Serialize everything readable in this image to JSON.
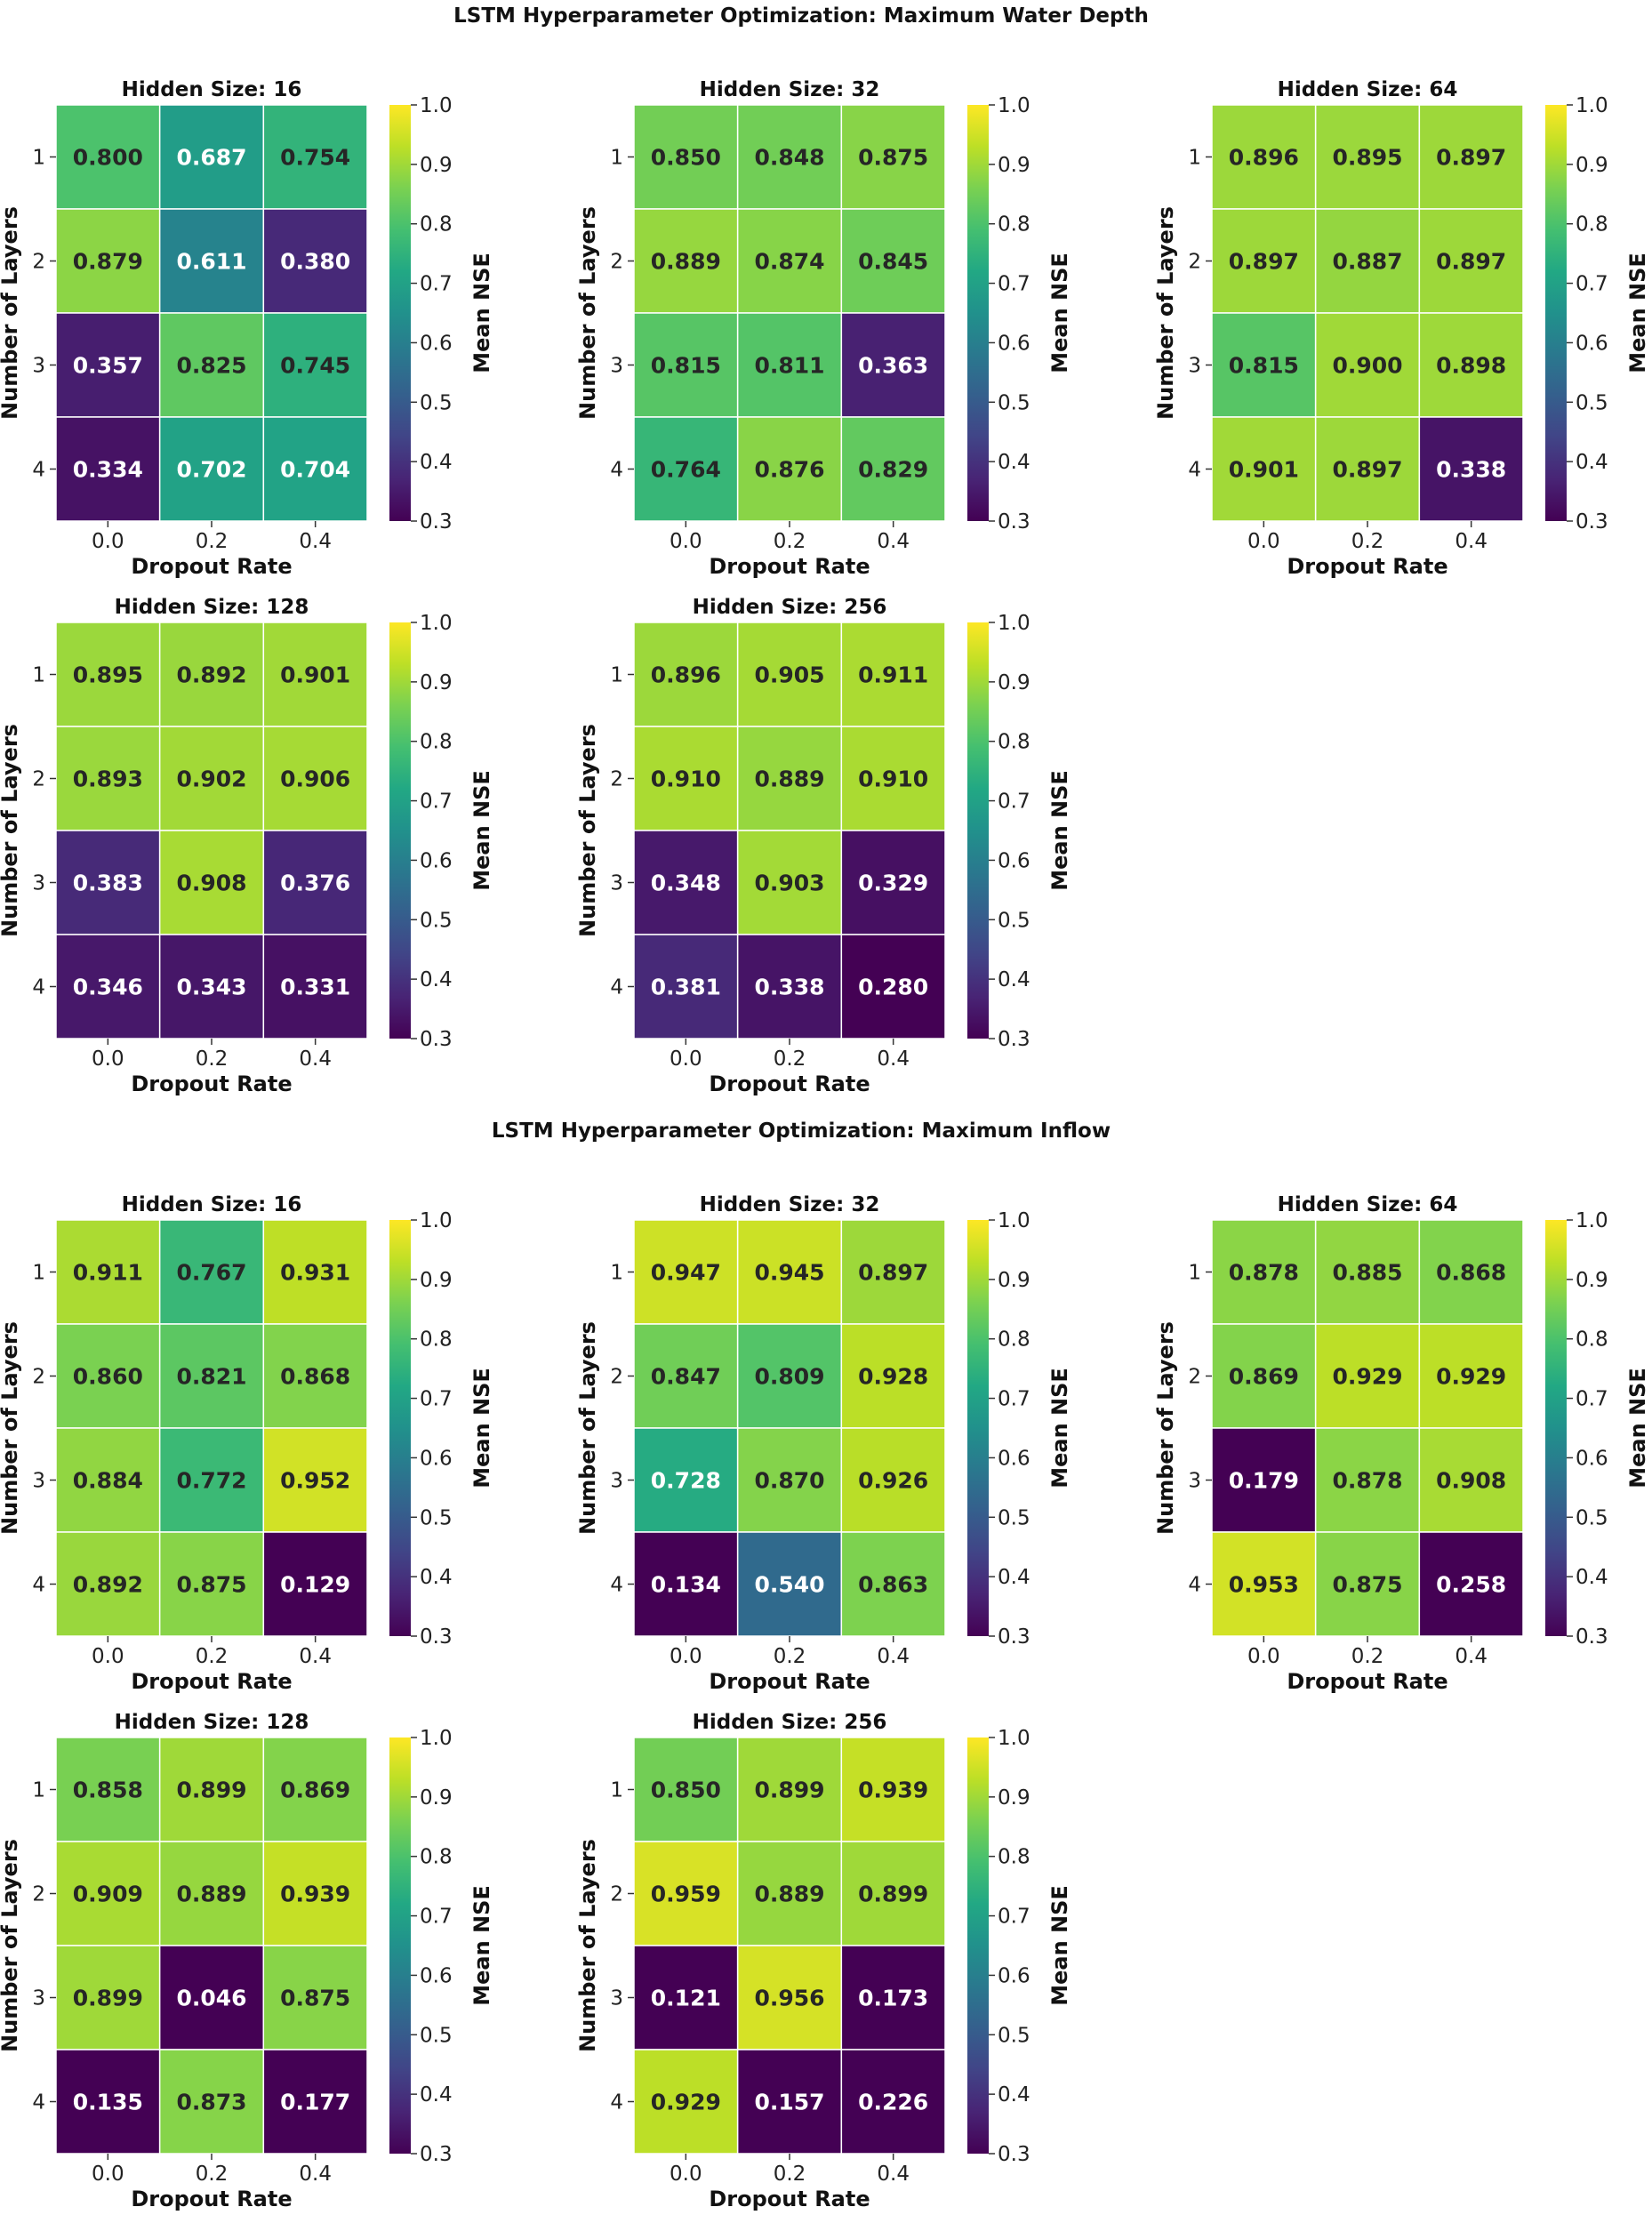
{
  "chart_data": [
    {
      "type": "heatmap",
      "title": "LSTM Hyperparameter Optimization: Maximum Water Depth",
      "xlabel": "Dropout Rate",
      "ylabel": "Number of Layers",
      "colorbar_label": "Mean NSE",
      "colorbar_range": [
        0.3,
        1.0
      ],
      "colorbar_ticks": [
        "0.3",
        "0.4",
        "0.5",
        "0.6",
        "0.7",
        "0.8",
        "0.9",
        "1.0"
      ],
      "colormap": "viridis",
      "x_categories": [
        "0.0",
        "0.2",
        "0.4"
      ],
      "y_categories": [
        "1",
        "2",
        "3",
        "4"
      ],
      "panels": [
        {
          "title": "Hidden Size: 16",
          "values": [
            [
              0.8,
              0.687,
              0.754
            ],
            [
              0.879,
              0.611,
              0.38
            ],
            [
              0.357,
              0.825,
              0.745
            ],
            [
              0.334,
              0.702,
              0.704
            ]
          ]
        },
        {
          "title": "Hidden Size: 32",
          "values": [
            [
              0.85,
              0.848,
              0.875
            ],
            [
              0.889,
              0.874,
              0.845
            ],
            [
              0.815,
              0.811,
              0.363
            ],
            [
              0.764,
              0.876,
              0.829
            ]
          ]
        },
        {
          "title": "Hidden Size: 64",
          "values": [
            [
              0.896,
              0.895,
              0.897
            ],
            [
              0.897,
              0.887,
              0.897
            ],
            [
              0.815,
              0.9,
              0.898
            ],
            [
              0.901,
              0.897,
              0.338
            ]
          ]
        },
        {
          "title": "Hidden Size: 128",
          "values": [
            [
              0.895,
              0.892,
              0.901
            ],
            [
              0.893,
              0.902,
              0.906
            ],
            [
              0.383,
              0.908,
              0.376
            ],
            [
              0.346,
              0.343,
              0.331
            ]
          ]
        },
        {
          "title": "Hidden Size: 256",
          "values": [
            [
              0.896,
              0.905,
              0.911
            ],
            [
              0.91,
              0.889,
              0.91
            ],
            [
              0.348,
              0.903,
              0.329
            ],
            [
              0.381,
              0.338,
              0.28
            ]
          ]
        }
      ]
    },
    {
      "type": "heatmap",
      "title": "LSTM Hyperparameter Optimization: Maximum Inflow",
      "xlabel": "Dropout Rate",
      "ylabel": "Number of Layers",
      "colorbar_label": "Mean NSE",
      "colorbar_range": [
        0.3,
        1.0
      ],
      "colorbar_ticks": [
        "0.3",
        "0.4",
        "0.5",
        "0.6",
        "0.7",
        "0.8",
        "0.9",
        "1.0"
      ],
      "colormap": "viridis",
      "x_categories": [
        "0.0",
        "0.2",
        "0.4"
      ],
      "y_categories": [
        "1",
        "2",
        "3",
        "4"
      ],
      "panels": [
        {
          "title": "Hidden Size: 16",
          "values": [
            [
              0.911,
              0.767,
              0.931
            ],
            [
              0.86,
              0.821,
              0.868
            ],
            [
              0.884,
              0.772,
              0.952
            ],
            [
              0.892,
              0.875,
              0.129
            ]
          ]
        },
        {
          "title": "Hidden Size: 32",
          "values": [
            [
              0.947,
              0.945,
              0.897
            ],
            [
              0.847,
              0.809,
              0.928
            ],
            [
              0.728,
              0.87,
              0.926
            ],
            [
              0.134,
              0.54,
              0.863
            ]
          ]
        },
        {
          "title": "Hidden Size: 64",
          "values": [
            [
              0.878,
              0.885,
              0.868
            ],
            [
              0.869,
              0.929,
              0.929
            ],
            [
              0.179,
              0.878,
              0.908
            ],
            [
              0.953,
              0.875,
              0.258
            ]
          ]
        },
        {
          "title": "Hidden Size: 128",
          "values": [
            [
              0.858,
              0.899,
              0.869
            ],
            [
              0.909,
              0.889,
              0.939
            ],
            [
              0.899,
              0.046,
              0.875
            ],
            [
              0.135,
              0.873,
              0.177
            ]
          ]
        },
        {
          "title": "Hidden Size: 256",
          "values": [
            [
              0.85,
              0.899,
              0.939
            ],
            [
              0.959,
              0.889,
              0.899
            ],
            [
              0.121,
              0.956,
              0.173
            ],
            [
              0.929,
              0.157,
              0.226
            ]
          ]
        }
      ]
    }
  ]
}
